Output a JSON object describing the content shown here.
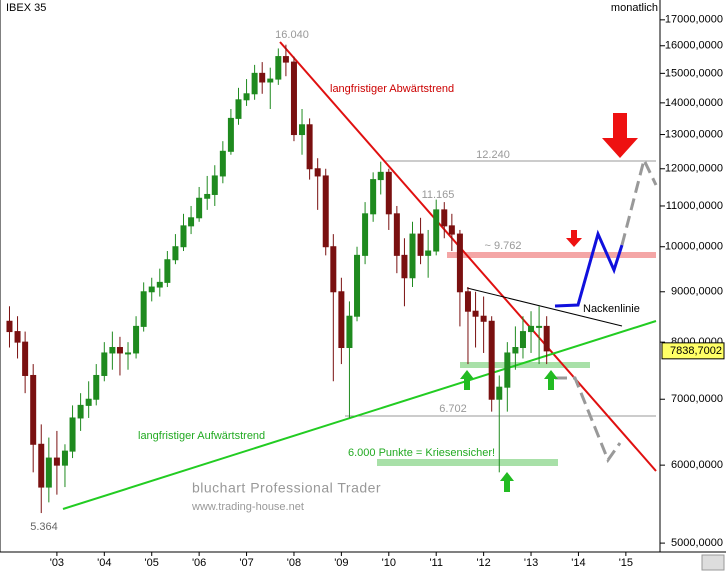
{
  "chart_data": {
    "type": "candlestick",
    "title": "IBEX 35",
    "subtitle": "monatlich",
    "log_y": true,
    "xlim": [
      2001.8,
      2015.72
    ],
    "ylim": [
      4920,
      17600
    ],
    "xticks": [
      {
        "value": 2003,
        "label": "'03"
      },
      {
        "value": 2004,
        "label": "'04"
      },
      {
        "value": 2005,
        "label": "'05"
      },
      {
        "value": 2006,
        "label": "'06"
      },
      {
        "value": 2007,
        "label": "'07"
      },
      {
        "value": 2008,
        "label": "'08"
      },
      {
        "value": 2009,
        "label": "'09"
      },
      {
        "value": 2010,
        "label": "'10"
      },
      {
        "value": 2011,
        "label": "'11"
      },
      {
        "value": 2012,
        "label": "'12"
      },
      {
        "value": 2013,
        "label": "'13"
      },
      {
        "value": 2014,
        "label": "'14"
      },
      {
        "value": 2015,
        "label": "'15"
      }
    ],
    "yticks": [
      {
        "value": 17000,
        "label": "17000,0000"
      },
      {
        "value": 16000,
        "label": "16000,0000"
      },
      {
        "value": 15000,
        "label": "15000,0000"
      },
      {
        "value": 14000,
        "label": "14000,0000"
      },
      {
        "value": 13000,
        "label": "13000,0000"
      },
      {
        "value": 12000,
        "label": "12000,0000"
      },
      {
        "value": 11000,
        "label": "11000,0000"
      },
      {
        "value": 10000,
        "label": "10000,0000"
      },
      {
        "value": 9000,
        "label": "9000,0000"
      },
      {
        "value": 8000,
        "label": "8000,0000"
      },
      {
        "value": 7000,
        "label": "7000,0000"
      },
      {
        "value": 6000,
        "label": "6000,0000"
      },
      {
        "value": 5000,
        "label": "5000,0000"
      }
    ],
    "up_color": "#1f8a1f",
    "down_color": "#7a1010",
    "x": [
      2002.0,
      2002.17,
      2002.33,
      2002.5,
      2002.67,
      2002.83,
      2003.0,
      2003.17,
      2003.33,
      2003.5,
      2003.67,
      2003.83,
      2004.0,
      2004.17,
      2004.33,
      2004.5,
      2004.67,
      2004.83,
      2005.0,
      2005.17,
      2005.33,
      2005.5,
      2005.67,
      2005.83,
      2006.0,
      2006.17,
      2006.33,
      2006.5,
      2006.67,
      2006.83,
      2007.0,
      2007.17,
      2007.33,
      2007.5,
      2007.67,
      2007.83,
      2008.0,
      2008.17,
      2008.33,
      2008.5,
      2008.67,
      2008.83,
      2009.0,
      2009.17,
      2009.33,
      2009.5,
      2009.67,
      2009.83,
      2010.0,
      2010.17,
      2010.33,
      2010.5,
      2010.67,
      2010.83,
      2011.0,
      2011.17,
      2011.33,
      2011.5,
      2011.67,
      2011.83,
      2012.0,
      2012.17,
      2012.33,
      2012.5,
      2012.67,
      2012.83,
      2013.0,
      2013.17,
      2013.33
    ],
    "open": [
      8400,
      8200,
      8000,
      7400,
      6300,
      5700,
      6100,
      6000,
      6200,
      6700,
      6900,
      7000,
      7400,
      7800,
      7900,
      7800,
      7800,
      8300,
      9000,
      9100,
      9200,
      9700,
      10000,
      10500,
      10700,
      11200,
      11300,
      11800,
      12500,
      13500,
      14100,
      14300,
      15000,
      14700,
      14800,
      15600,
      15400,
      13000,
      13300,
      12000,
      11800,
      10000,
      9000,
      7900,
      8500,
      9800,
      10800,
      11700,
      11900,
      10800,
      9800,
      9300,
      10300,
      9800,
      9900,
      10900,
      10500,
      10300,
      9000,
      8600,
      8500,
      8400,
      7000,
      7200,
      7800,
      7900,
      8200,
      8300,
      8300
    ],
    "high": [
      8700,
      8500,
      8200,
      7600,
      6600,
      6400,
      6500,
      6300,
      6900,
      7100,
      7300,
      7600,
      8000,
      8200,
      8100,
      8000,
      8500,
      9200,
      9300,
      9500,
      9900,
      10300,
      10800,
      11000,
      11500,
      11800,
      12100,
      12800,
      13800,
      14500,
      14800,
      15300,
      15400,
      15200,
      15900,
      16040,
      15600,
      13800,
      13500,
      12300,
      12000,
      10300,
      9300,
      8800,
      10000,
      11100,
      11900,
      12200,
      12000,
      11000,
      10200,
      10600,
      10700,
      10400,
      11165,
      11100,
      10800,
      10400,
      9100,
      9000,
      8900,
      8500,
      7400,
      8000,
      8300,
      8500,
      8600,
      8700,
      8500
    ],
    "low": [
      7900,
      7700,
      7100,
      5900,
      5364,
      5500,
      5600,
      5700,
      6100,
      6500,
      6700,
      6900,
      7300,
      7500,
      7400,
      7500,
      7700,
      8200,
      8800,
      8900,
      9100,
      9600,
      9900,
      10300,
      10600,
      10900,
      11000,
      11600,
      12400,
      13300,
      13900,
      14100,
      14300,
      13800,
      14600,
      14900,
      12800,
      12400,
      11700,
      10900,
      9800,
      7300,
      7600,
      6702,
      8400,
      9600,
      10600,
      11300,
      10400,
      9400,
      8700,
      9100,
      9600,
      9300,
      9800,
      10200,
      9900,
      8300,
      7600,
      7900,
      7800,
      6800,
      5900,
      6800,
      7500,
      7700,
      7800,
      7600,
      7600
    ],
    "close": [
      8200,
      8000,
      7400,
      6300,
      5700,
      6100,
      6000,
      6200,
      6700,
      6900,
      7000,
      7400,
      7800,
      7900,
      7800,
      7800,
      8300,
      9000,
      9100,
      9200,
      9700,
      10000,
      10500,
      10700,
      11200,
      11300,
      11800,
      12500,
      13500,
      14100,
      14300,
      15000,
      14700,
      14800,
      15600,
      15400,
      13000,
      13300,
      12000,
      11800,
      10000,
      9000,
      7900,
      8500,
      9800,
      10800,
      11700,
      11900,
      10800,
      9800,
      9300,
      10300,
      9800,
      9900,
      10900,
      10500,
      10300,
      9000,
      8600,
      8500,
      8400,
      7000,
      7200,
      7800,
      7900,
      8200,
      8300,
      8300,
      7838
    ],
    "last_price": {
      "value": 7838.7002,
      "label": "7838,7002"
    },
    "annotations": {
      "high_label": "16.040",
      "resistance_1": "12.240",
      "high_2011": "11.165",
      "resistance_2": "~ 9.762",
      "support_label": "6.702",
      "low_label": "5.364",
      "downtrend": "langfristiger Abwärtstrend",
      "uptrend": "langfristiger Aufwärtstrend",
      "neckline": "Nackenlinie",
      "crisis": "6.000 Punkte = Kriesensicher!"
    },
    "watermark": {
      "title": "bluchart Professional Trader",
      "url": "www.trading-house.net"
    }
  }
}
